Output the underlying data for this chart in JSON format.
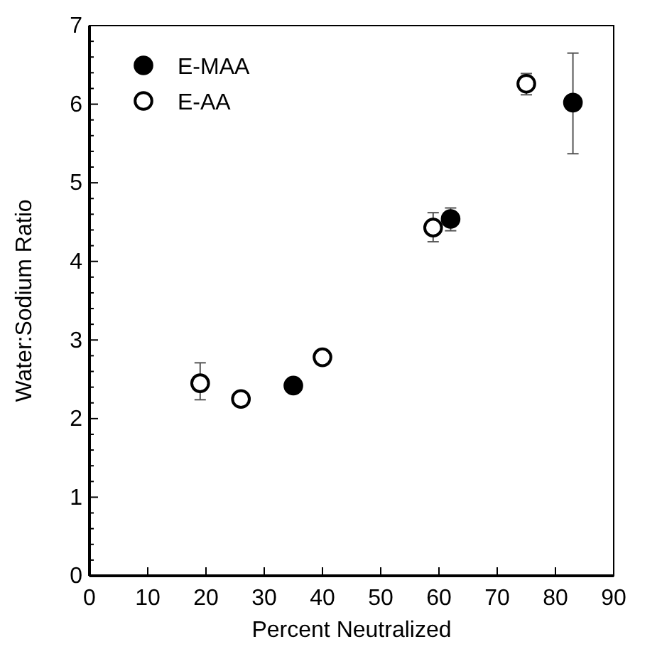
{
  "chart_data": {
    "type": "scatter",
    "xlabel": "Percent Neutralized",
    "ylabel": "Water:Sodium Ratio",
    "xlim": [
      0,
      90
    ],
    "xticks": [
      0,
      10,
      20,
      30,
      40,
      50,
      60,
      70,
      80,
      90
    ],
    "ylim": [
      0,
      7
    ],
    "yticks": [
      0,
      {
        "value": 0.2,
        "label": null
      },
      {
        "value": 0.4,
        "label": null
      },
      {
        "value": 0.6,
        "label": null
      },
      {
        "value": 0.8,
        "label": null
      },
      1,
      {
        "value": 1.2,
        "label": null
      },
      {
        "value": 1.4,
        "label": null
      },
      {
        "value": 1.6,
        "label": null
      },
      {
        "value": 1.8,
        "label": null
      },
      2,
      {
        "value": 2.2,
        "label": null
      },
      {
        "value": 2.4,
        "label": null
      },
      {
        "value": 2.6,
        "label": null
      },
      {
        "value": 2.8,
        "label": null
      },
      3,
      {
        "value": 3.2,
        "label": null
      },
      {
        "value": 3.4,
        "label": null
      },
      {
        "value": 3.6,
        "label": null
      },
      {
        "value": 3.8,
        "label": null
      },
      4,
      {
        "value": 4.2,
        "label": null
      },
      {
        "value": 4.4,
        "label": null
      },
      {
        "value": 4.6,
        "label": null
      },
      {
        "value": 4.8,
        "label": null
      },
      5,
      {
        "value": 5.2,
        "label": null
      },
      {
        "value": 5.4,
        "label": null
      },
      {
        "value": 5.6,
        "label": null
      },
      {
        "value": 5.8,
        "label": null
      },
      6,
      {
        "value": 6.2,
        "label": null
      },
      {
        "value": 6.4,
        "label": null
      },
      {
        "value": 6.6,
        "label": null
      },
      {
        "value": 6.8,
        "label": null
      },
      7
    ],
    "grid": false,
    "legend": "top left",
    "marker": "circle",
    "series": [
      {
        "name": "E-MAA",
        "color": "#000000",
        "x": [
          35,
          62,
          83
        ],
        "values": [
          2.42,
          4.54,
          6.02
        ],
        "errors": [
          null,
          [
            4.39,
            4.68
          ],
          [
            5.37,
            6.65
          ]
        ]
      },
      {
        "name": "E-AA",
        "color": "#ffffff",
        "x": [
          19,
          26,
          40,
          59,
          75
        ],
        "values": [
          2.45,
          2.25,
          2.78,
          4.43,
          6.26
        ],
        "errors": [
          [
            2.24,
            2.71
          ],
          null,
          null,
          [
            4.25,
            4.62
          ],
          [
            6.12,
            6.39
          ]
        ]
      }
    ]
  }
}
